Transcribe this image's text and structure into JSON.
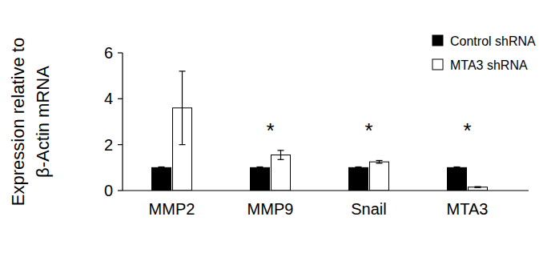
{
  "chart_data": {
    "type": "bar",
    "y_label": [
      "Expression relative to",
      "β-Actin mRNA"
    ],
    "categories": [
      "MMP2",
      "MMP9",
      "Snail",
      "MTA3"
    ],
    "series": [
      {
        "name": "Control shRNA",
        "color": "#000000",
        "values": [
          1,
          1,
          1,
          1
        ],
        "errors": [
          0.03,
          0.03,
          0.03,
          0.03
        ]
      },
      {
        "name": "MTA3 shRNA",
        "color": "#ffffff",
        "values": [
          3.6,
          1.55,
          1.25,
          0.15
        ],
        "errors": [
          1.6,
          0.2,
          0.06,
          0.02
        ]
      }
    ],
    "annotations": [
      {
        "category": "MMP9",
        "text": "*"
      },
      {
        "category": "Snail",
        "text": "*"
      },
      {
        "category": "MTA3",
        "text": "*"
      }
    ],
    "ylim": [
      0,
      6
    ],
    "yticks": [
      0,
      2,
      4,
      6
    ],
    "grid": false,
    "legend": "upper right"
  }
}
